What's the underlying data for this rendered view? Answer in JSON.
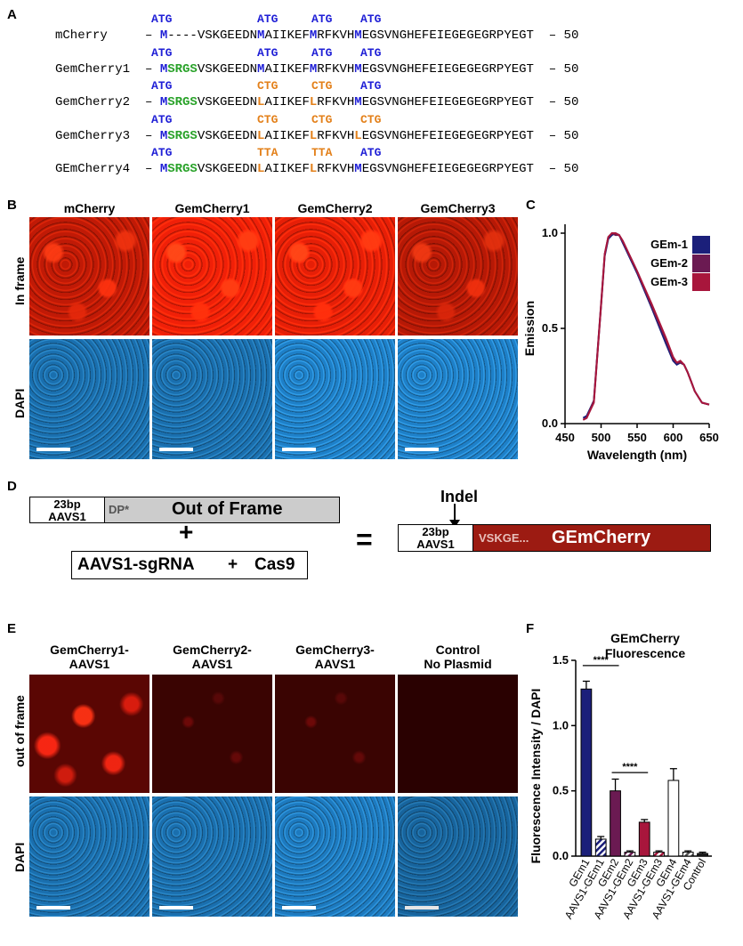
{
  "panels": {
    "a": "A",
    "b": "B",
    "c": "C",
    "d": "D",
    "e": "E",
    "f": "F"
  },
  "panelA": {
    "rows": [
      {
        "name": "mCherry",
        "codons": [
          "ATG",
          "ATG",
          "ATG",
          "ATG"
        ],
        "codon_colors": [
          "blue",
          "blue",
          "blue",
          "blue"
        ],
        "seq": [
          [
            "– ",
            ""
          ],
          [
            "M",
            "blue"
          ],
          [
            "----VSKGEEDN",
            ""
          ],
          [
            "M",
            "blue"
          ],
          [
            "AIIKEF",
            ""
          ],
          [
            "M",
            "blue"
          ],
          [
            "RFKVH",
            ""
          ],
          [
            "M",
            "blue"
          ],
          [
            "EGSVNGHEFEIEGEGEGRPYEGT  – 50",
            ""
          ]
        ]
      },
      {
        "name": "GemCherry1",
        "codons": [
          "ATG",
          "ATG",
          "ATG",
          "ATG"
        ],
        "codon_colors": [
          "blue",
          "blue",
          "blue",
          "blue"
        ],
        "seq": [
          [
            "– ",
            ""
          ],
          [
            "M",
            "blue"
          ],
          [
            "SRGS",
            "green"
          ],
          [
            "VSKGEEDN",
            ""
          ],
          [
            "M",
            "blue"
          ],
          [
            "AIIKEF",
            ""
          ],
          [
            "M",
            "blue"
          ],
          [
            "RFKVH",
            ""
          ],
          [
            "M",
            "blue"
          ],
          [
            "EGSVNGHEFEIEGEGEGRPYEGT  – 50",
            ""
          ]
        ]
      },
      {
        "name": "GemCherry2",
        "codons": [
          "ATG",
          "CTG",
          "CTG",
          "ATG"
        ],
        "codon_colors": [
          "blue",
          "orange",
          "orange",
          "blue"
        ],
        "seq": [
          [
            "– ",
            ""
          ],
          [
            "M",
            "blue"
          ],
          [
            "SRGS",
            "green"
          ],
          [
            "VSKGEEDN",
            ""
          ],
          [
            "L",
            "orange"
          ],
          [
            "AIIKEF",
            ""
          ],
          [
            "L",
            "orange"
          ],
          [
            "RFKVH",
            ""
          ],
          [
            "M",
            "blue"
          ],
          [
            "EGSVNGHEFEIEGEGEGRPYEGT  – 50",
            ""
          ]
        ]
      },
      {
        "name": "GemCherry3",
        "codons": [
          "ATG",
          "CTG",
          "CTG",
          "CTG"
        ],
        "codon_colors": [
          "blue",
          "orange",
          "orange",
          "orange"
        ],
        "seq": [
          [
            "– ",
            ""
          ],
          [
            "M",
            "blue"
          ],
          [
            "SRGS",
            "green"
          ],
          [
            "VSKGEEDN",
            ""
          ],
          [
            "L",
            "orange"
          ],
          [
            "AIIKEF",
            ""
          ],
          [
            "L",
            "orange"
          ],
          [
            "RFKVH",
            ""
          ],
          [
            "L",
            "orange"
          ],
          [
            "EGSVNGHEFEIEGEGEGRPYEGT  – 50",
            ""
          ]
        ]
      },
      {
        "name": "GEmCherry4",
        "codons": [
          "ATG",
          "TTA",
          "TTA",
          "ATG"
        ],
        "codon_colors": [
          "blue",
          "orange",
          "orange",
          "blue"
        ],
        "seq": [
          [
            "– ",
            ""
          ],
          [
            "M",
            "blue"
          ],
          [
            "SRGS",
            "green"
          ],
          [
            "VSKGEEDN",
            ""
          ],
          [
            "L",
            "orange"
          ],
          [
            "AIIKEF",
            ""
          ],
          [
            "L",
            "orange"
          ],
          [
            "RFKVH",
            ""
          ],
          [
            "M",
            "blue"
          ],
          [
            "EGSVNGHEFEIEGEGEGRPYEGT  – 50",
            ""
          ]
        ]
      }
    ]
  },
  "panelB": {
    "columns": [
      "mCherry",
      "GemCherry1",
      "GemCherry2",
      "GemCherry3"
    ],
    "rows": [
      "In frame",
      "DAPI"
    ]
  },
  "panelD": {
    "box1_top": "23bp",
    "box1_bottom": "AAVS1",
    "dp": "DP*",
    "out_of_frame": "Out of Frame",
    "plus": "+",
    "sgrna": "AAVS1-sgRNA",
    "plus2": "+",
    "cas9": "Cas9",
    "equals": "=",
    "indel": "Indel",
    "box2_top": "23bp",
    "box2_bottom": "AAVS1",
    "vskge": "VSKGE...",
    "gemcherry": "GEmCherry"
  },
  "panelE": {
    "columns": [
      [
        "GemCherry1-",
        "AAVS1"
      ],
      [
        "GemCherry2-",
        "AAVS1"
      ],
      [
        "GemCherry3-",
        "AAVS1"
      ],
      [
        "Control",
        "No Plasmid"
      ]
    ],
    "rows": [
      "out of frame",
      "DAPI"
    ]
  },
  "colors": {
    "gem1": "#1b1f7a",
    "gem2": "#6b1a52",
    "gem3": "#a8163c",
    "dark_red": "#9c1b12",
    "grey": "#cccccc"
  },
  "chart_data": [
    {
      "type": "line",
      "panel": "C",
      "xlabel": "Wavelength (nm)",
      "ylabel": "Emission",
      "xlim": [
        450,
        650
      ],
      "ylim": [
        0,
        1.0
      ],
      "xticks": [
        450,
        500,
        550,
        600,
        650
      ],
      "yticks": [
        0.0,
        0.5,
        1.0
      ],
      "legend_position": "top-right",
      "series": [
        {
          "name": "GEm-1",
          "color": "#1b1f7a",
          "x": [
            475,
            480,
            490,
            500,
            505,
            510,
            515,
            520,
            525,
            530,
            550,
            570,
            590,
            600,
            605,
            610,
            615,
            620,
            625,
            630,
            640,
            650
          ],
          "y": [
            0.03,
            0.04,
            0.12,
            0.62,
            0.88,
            0.97,
            0.99,
            1.0,
            0.99,
            0.95,
            0.79,
            0.61,
            0.42,
            0.33,
            0.31,
            0.32,
            0.31,
            0.27,
            0.22,
            0.17,
            0.11,
            0.1
          ]
        },
        {
          "name": "GEm-2",
          "color": "#6b1a52",
          "x": [
            475,
            480,
            490,
            500,
            505,
            510,
            515,
            520,
            525,
            530,
            550,
            570,
            590,
            600,
            605,
            610,
            615,
            620,
            625,
            630,
            640,
            650
          ],
          "y": [
            0.02,
            0.03,
            0.12,
            0.63,
            0.89,
            0.98,
            1.0,
            0.99,
            0.99,
            0.96,
            0.8,
            0.62,
            0.44,
            0.34,
            0.32,
            0.32,
            0.31,
            0.27,
            0.22,
            0.17,
            0.11,
            0.1
          ]
        },
        {
          "name": "GEm-3",
          "color": "#a8163c",
          "x": [
            475,
            480,
            490,
            500,
            505,
            510,
            515,
            520,
            525,
            530,
            550,
            570,
            590,
            600,
            605,
            610,
            615,
            620,
            625,
            630,
            640,
            650
          ],
          "y": [
            0.02,
            0.03,
            0.11,
            0.62,
            0.89,
            0.98,
            1.0,
            1.0,
            0.99,
            0.96,
            0.8,
            0.63,
            0.45,
            0.35,
            0.32,
            0.33,
            0.31,
            0.27,
            0.22,
            0.17,
            0.11,
            0.1
          ]
        }
      ]
    },
    {
      "type": "bar",
      "panel": "F",
      "title": [
        "GEmCherry",
        "Fluorescence"
      ],
      "ylabel": "Fluorescence Intensity / DAPI",
      "ylim": [
        0,
        1.5
      ],
      "yticks": [
        0.0,
        0.5,
        1.0,
        1.5
      ],
      "categories": [
        "GEm1",
        "AAVS1-GEm1",
        "GEm2",
        "AAVS1-GEm2",
        "GEm3",
        "AAVS1-GEm3",
        "GEm4",
        "AAVS1-GEm4",
        "Control"
      ],
      "values": [
        1.28,
        0.13,
        0.5,
        0.03,
        0.26,
        0.03,
        0.58,
        0.03,
        0.02
      ],
      "errors": [
        0.06,
        0.02,
        0.09,
        0.01,
        0.02,
        0.01,
        0.09,
        0.01,
        0.01
      ],
      "fills": [
        "#1b1f7a",
        "striped-blue",
        "#6b1a52",
        "striped-purple",
        "#a8163c",
        "striped-red",
        "#ffffff",
        "striped-grey",
        "#222222"
      ],
      "significance": [
        {
          "label": "****"
        },
        {
          "label": "****"
        }
      ]
    }
  ]
}
